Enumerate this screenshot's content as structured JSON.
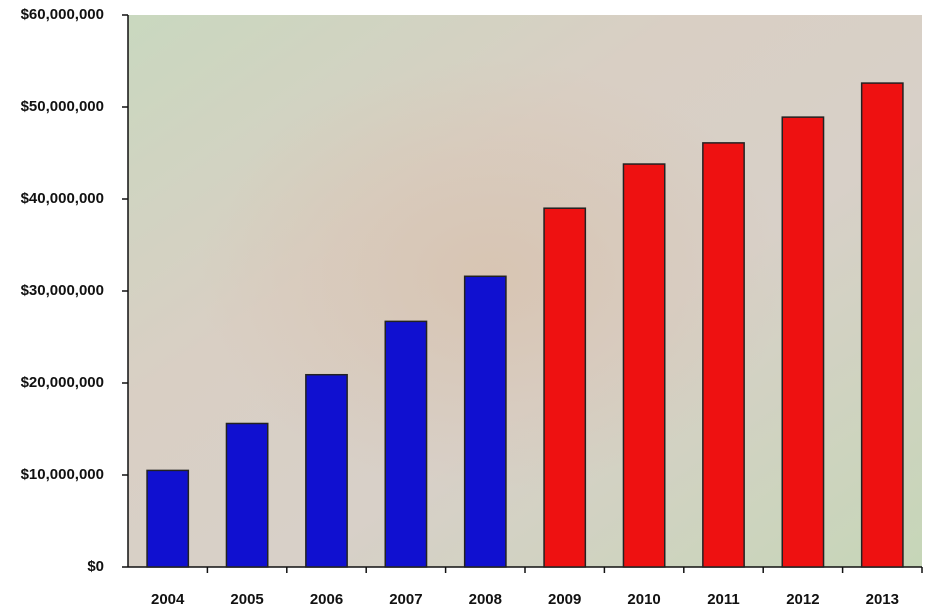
{
  "chart_data": {
    "type": "bar",
    "categories": [
      "2004",
      "2005",
      "2006",
      "2007",
      "2008",
      "2009",
      "2010",
      "2011",
      "2012",
      "2013"
    ],
    "values": [
      10500000,
      15600000,
      20900000,
      26700000,
      31600000,
      39000000,
      43800000,
      46100000,
      48900000,
      52600000
    ],
    "colors": [
      "#1010d0",
      "#1010d0",
      "#1010d0",
      "#1010d0",
      "#1010d0",
      "#ee1111",
      "#ee1111",
      "#ee1111",
      "#ee1111",
      "#ee1111"
    ],
    "ylim": [
      0,
      60000000
    ],
    "yticks": [
      {
        "value": 0,
        "label": "$0"
      },
      {
        "value": 10000000,
        "label": "$10,000,000"
      },
      {
        "value": 20000000,
        "label": "$20,000,000"
      },
      {
        "value": 30000000,
        "label": "$30,000,000"
      },
      {
        "value": 40000000,
        "label": "$40,000,000"
      },
      {
        "value": 50000000,
        "label": "$50,000,000"
      },
      {
        "value": 60000000,
        "label": "$60,000,000"
      }
    ],
    "grid": false
  }
}
